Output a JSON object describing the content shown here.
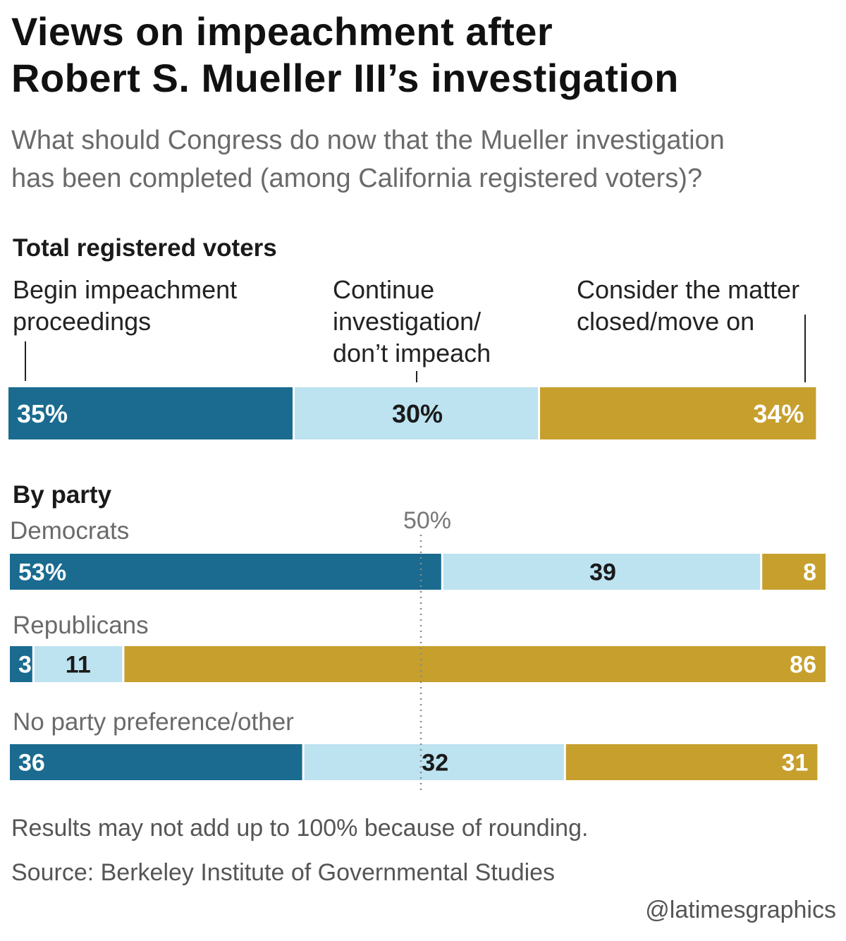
{
  "title_line1": "Views on impeachment after",
  "title_line2": "Robert S. Mueller III’s investigation",
  "subtitle_line1": "What should Congress do now that the Mueller investigation",
  "subtitle_line2": "has been completed (among California registered voters)?",
  "total_heading": "Total registered voters",
  "categories": {
    "begin": [
      "Begin impeachment",
      "proceedings"
    ],
    "continue": [
      "Continue",
      "investigation/",
      "don’t impeach"
    ],
    "closed": [
      "Consider the matter",
      "closed/move on"
    ]
  },
  "party_heading": "By party",
  "reference_label": "50%",
  "footnote": "Results may not add up to 100% because of rounding.",
  "source": "Source: Berkeley Institute of Governmental Studies",
  "credit": "@latimesgraphics",
  "colors": {
    "begin": "#1a6b8f",
    "continue": "#bde2f0",
    "closed": "#c69f2d",
    "label_on_dark": "#ffffff",
    "label_on_light": "#1a1a1a"
  },
  "chart_data": {
    "type": "bar",
    "stacked": true,
    "orientation": "horizontal",
    "segments": [
      "Begin impeachment proceedings",
      "Continue investigation/ don’t impeach",
      "Consider the matter closed/move on"
    ],
    "reference_line": 50,
    "rows": [
      {
        "name": "Total registered voters",
        "values": [
          35,
          30,
          34
        ],
        "labels": [
          "35%",
          "30%",
          "34%"
        ]
      },
      {
        "name": "Democrats",
        "values": [
          53,
          39,
          8
        ],
        "labels": [
          "53%",
          "39",
          "8"
        ]
      },
      {
        "name": "Republicans",
        "values": [
          3,
          11,
          86
        ],
        "labels": [
          "3",
          "11",
          "86"
        ]
      },
      {
        "name": "No party preference/other",
        "values": [
          36,
          32,
          31
        ],
        "labels": [
          "36",
          "32",
          "31"
        ]
      }
    ]
  }
}
